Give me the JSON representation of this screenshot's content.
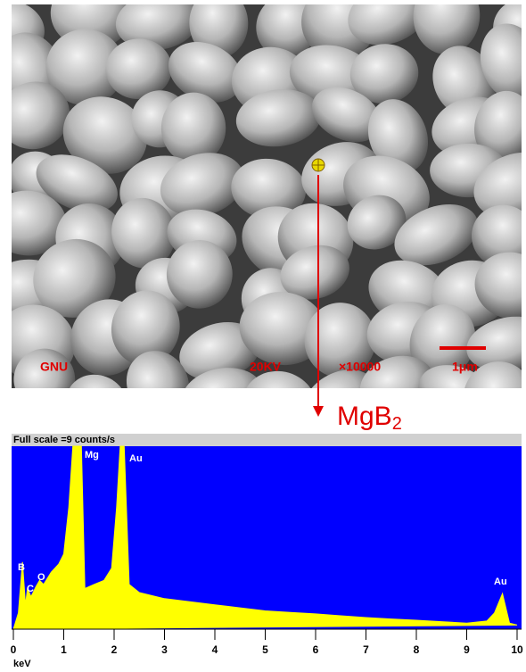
{
  "sem": {
    "lab": "GNU",
    "voltage": "20KV",
    "magnification": "×10000",
    "scale": "1μm"
  },
  "arrow_label": "MgB",
  "arrow_label_sub": "2",
  "chart_data": {
    "type": "area",
    "title": "Full scale =9 counts/s",
    "x_label": "keV",
    "x": [
      0,
      0.1,
      0.18,
      0.24,
      0.28,
      0.35,
      0.45,
      0.52,
      0.6,
      0.75,
      0.9,
      1.0,
      1.1,
      1.18,
      1.25,
      1.35,
      1.42,
      1.6,
      1.8,
      1.95,
      2.05,
      2.12,
      2.2,
      2.3,
      2.5,
      3,
      3.5,
      4,
      4.5,
      5,
      5.5,
      6,
      6.5,
      7,
      7.5,
      8,
      8.5,
      9,
      9.4,
      9.55,
      9.71,
      9.85,
      10
    ],
    "y": [
      0,
      0.8,
      3.3,
      1.2,
      2,
      1.6,
      2.1,
      2.4,
      2.2,
      2.8,
      3.2,
      3.7,
      6,
      9,
      9,
      9,
      2,
      2.2,
      2.4,
      3,
      6,
      9,
      9,
      2.2,
      1.8,
      1.5,
      1.35,
      1.2,
      1.05,
      0.9,
      0.82,
      0.75,
      0.66,
      0.57,
      0.5,
      0.44,
      0.37,
      0.3,
      0.4,
      0.8,
      1.75,
      0.3,
      0.2
    ],
    "color": "#ffff00",
    "background": "#0000ff",
    "xlim": [
      0,
      10
    ],
    "ylim": [
      0,
      9
    ],
    "xticks": [
      0,
      1,
      2,
      3,
      4,
      5,
      6,
      7,
      8,
      9,
      10
    ],
    "annotations": [
      "B",
      "C",
      "O",
      "Mg",
      "Au",
      "Au"
    ]
  }
}
